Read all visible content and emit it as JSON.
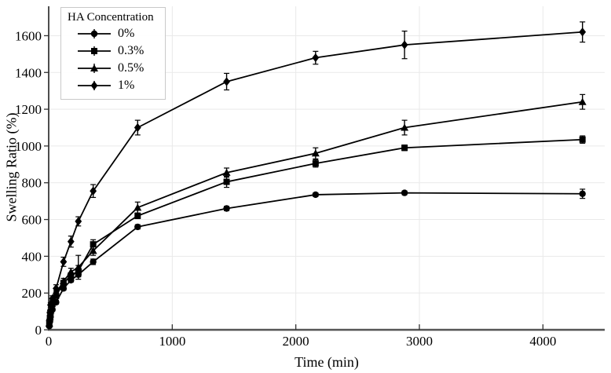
{
  "figure": {
    "background": "#ffffff",
    "axis_color": "#222222",
    "bottom_spine_color": "#555555",
    "grid_color": "#e9e9e9",
    "text_color": "#000000"
  },
  "chart_data": {
    "type": "line",
    "title": "",
    "xlabel": "Time (min)",
    "ylabel": "Swelling Ratio (%)",
    "xlim": [
      0,
      4500
    ],
    "ylim": [
      0,
      1760
    ],
    "x_ticks": [
      0,
      1000,
      2000,
      3000,
      4000
    ],
    "y_ticks": [
      0,
      200,
      400,
      600,
      800,
      1000,
      1200,
      1400,
      1600
    ],
    "grid": true,
    "legend_title": "HA Concentration",
    "legend_position": "upper-left",
    "line_color": "#000000",
    "x": [
      5,
      10,
      15,
      30,
      60,
      120,
      180,
      240,
      360,
      720,
      1440,
      2160,
      2880,
      4320
    ],
    "series": [
      {
        "name": "0%",
        "marker": "circle",
        "values": [
          20,
          45,
          70,
          110,
          150,
          225,
          270,
          300,
          370,
          560,
          660,
          735,
          745,
          740
        ],
        "errors": [
          5,
          5,
          8,
          8,
          10,
          10,
          10,
          12,
          15,
          12,
          12,
          10,
          10,
          25
        ]
      },
      {
        "name": "0.3%",
        "marker": "square",
        "values": [
          30,
          65,
          95,
          140,
          185,
          255,
          295,
          320,
          465,
          620,
          805,
          905,
          990,
          1035
        ],
        "errors": [
          5,
          8,
          8,
          10,
          10,
          12,
          15,
          30,
          25,
          15,
          30,
          20,
          15,
          20
        ]
      },
      {
        "name": "0.5%",
        "marker": "triangle",
        "values": [
          35,
          70,
          105,
          150,
          200,
          265,
          315,
          340,
          430,
          665,
          855,
          960,
          1100,
          1240
        ],
        "errors": [
          5,
          8,
          10,
          10,
          12,
          15,
          20,
          65,
          25,
          30,
          25,
          30,
          40,
          40
        ]
      },
      {
        "name": "1%",
        "marker": "diamond",
        "values": [
          50,
          95,
          135,
          170,
          225,
          370,
          480,
          590,
          755,
          1100,
          1350,
          1480,
          1550,
          1620
        ],
        "errors": [
          8,
          10,
          12,
          15,
          20,
          25,
          30,
          25,
          35,
          40,
          45,
          35,
          75,
          55
        ]
      }
    ]
  }
}
